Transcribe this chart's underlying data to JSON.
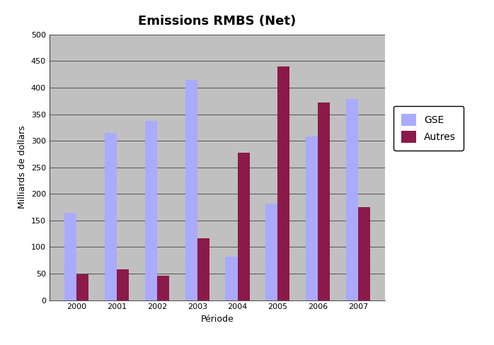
{
  "title": "Emissions RMBS (Net)",
  "xlabel": "Période",
  "ylabel": "Milliards de dollars",
  "categories": [
    "2000",
    "2001",
    "2002",
    "2003",
    "2004",
    "2005",
    "2006",
    "2007"
  ],
  "gse_values": [
    165,
    315,
    337,
    415,
    82,
    182,
    308,
    378
  ],
  "autres_values": [
    48,
    58,
    46,
    117,
    277,
    440,
    372,
    175
  ],
  "gse_color": "#aaaaff",
  "autres_color": "#8b1a4a",
  "ylim": [
    0,
    500
  ],
  "yticks": [
    0,
    50,
    100,
    150,
    200,
    250,
    300,
    350,
    400,
    450,
    500
  ],
  "background_color": "#c0c0c0",
  "legend_labels": [
    "GSE",
    "Autres"
  ],
  "bar_width": 0.3,
  "title_fontsize": 13,
  "label_fontsize": 9,
  "tick_fontsize": 8,
  "legend_fontsize": 10
}
